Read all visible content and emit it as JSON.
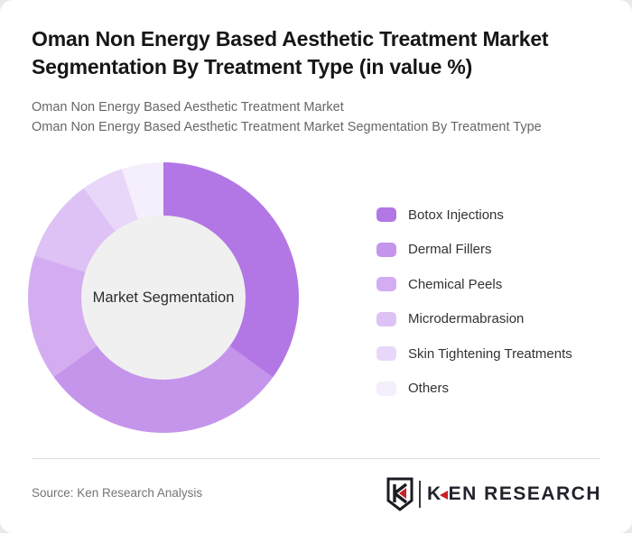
{
  "header": {
    "title": "Oman Non Energy Based Aesthetic Treatment Market Segmentation By Treatment Type (in value %)",
    "subtitle_line1": "Oman Non Energy Based Aesthetic Treatment Market",
    "subtitle_line2": "Oman Non Energy Based Aesthetic Treatment Market Segmentation By Treatment Type"
  },
  "chart_data": {
    "type": "pie",
    "variant": "donut",
    "title": "Oman Non Energy Based Aesthetic Treatment Market Segmentation By Treatment Type (in value %)",
    "center_label": "Market Segmentation",
    "unit": "value %",
    "start_angle_deg": 0,
    "direction": "clockwise",
    "legend_position": "right",
    "hole_color": "#f0f0f0",
    "series": [
      {
        "label": "Botox Injections",
        "value": 35,
        "color": "#b277e5"
      },
      {
        "label": "Dermal Fillers",
        "value": 30,
        "color": "#c594eb"
      },
      {
        "label": "Chemical Peels",
        "value": 15,
        "color": "#d4adf1"
      },
      {
        "label": "Microdermabrasion",
        "value": 10,
        "color": "#dec2f5"
      },
      {
        "label": "Skin Tightening Treatments",
        "value": 5,
        "color": "#e9d7f9"
      },
      {
        "label": "Others",
        "value": 5,
        "color": "#f5eefc"
      }
    ]
  },
  "footer": {
    "source_label": "Source: Ken Research Analysis",
    "logo": {
      "emblem_letter": "K",
      "brand_part1": "K",
      "brand_part2": "EN RESEARCH",
      "accent_color": "#cb2026",
      "text_color": "#22222c"
    }
  }
}
